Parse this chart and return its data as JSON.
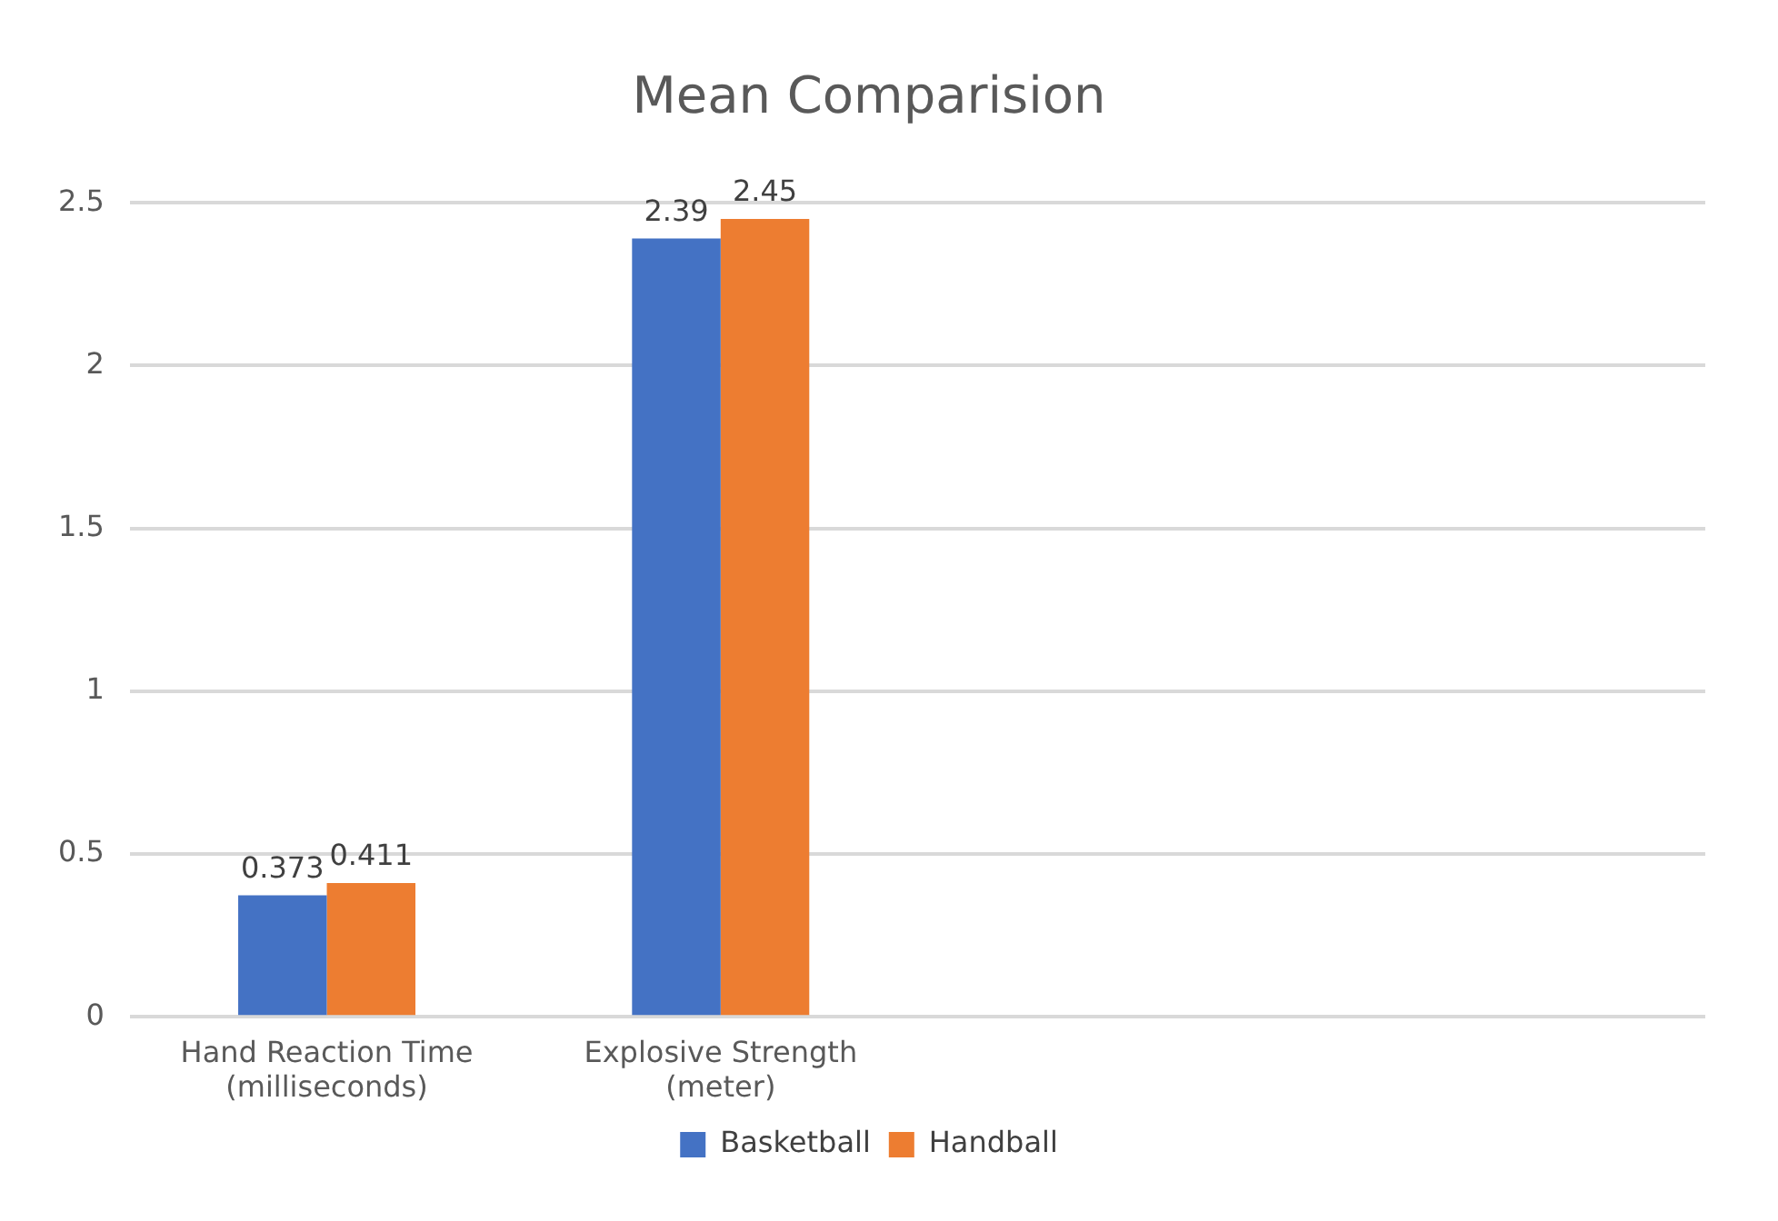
{
  "chart_data": {
    "type": "bar",
    "title": "Mean Comparision",
    "categories": [
      "Hand Reaction Time (milliseconds)",
      "Explosive Strength (meter)",
      null,
      null
    ],
    "series": [
      {
        "name": "Basketball",
        "color": "#4472c4",
        "values": [
          0.373,
          2.39,
          null,
          null
        ]
      },
      {
        "name": "Handball",
        "color": "#ed7d31",
        "values": [
          0.411,
          2.45,
          null,
          null
        ]
      }
    ],
    "ylim": [
      0,
      2.5
    ],
    "yticks": [
      0,
      0.5,
      1,
      1.5,
      2,
      2.5
    ],
    "grid": "y",
    "legend": "bottom",
    "data_labels": true
  }
}
